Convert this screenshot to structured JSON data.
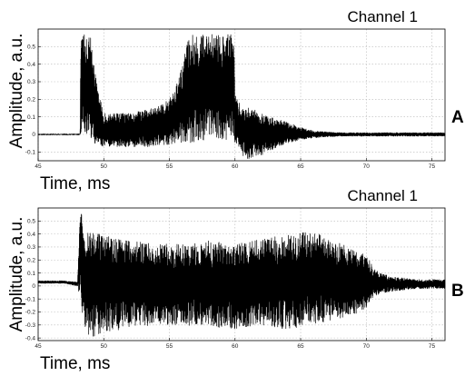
{
  "chart_data": [
    {
      "panel_label": "A",
      "type": "line",
      "title": "Channel 1",
      "xlabel": "Time, ms",
      "ylabel": "Amplitude, a.u.",
      "xlim": [
        45,
        76
      ],
      "ylim": [
        -0.15,
        0.6
      ],
      "xticks": [
        45,
        50,
        55,
        60,
        65,
        70,
        75
      ],
      "yticks": [
        -0.1,
        0,
        0.1,
        0.2,
        0.3,
        0.4,
        0.5
      ],
      "grid": true,
      "color": "#000000",
      "series": [
        {
          "kind": "envelope",
          "x": [
            45,
            47,
            48.2,
            48.25,
            48.5,
            48.55,
            49,
            49.5,
            50,
            51,
            52,
            53,
            54,
            55,
            55.5,
            56,
            56.5,
            57,
            58,
            59,
            59.9,
            60,
            60.5,
            61,
            62,
            63,
            64,
            65,
            66,
            67,
            68,
            70,
            72,
            74,
            76
          ],
          "max": [
            0.0,
            0.0,
            0.0,
            0.57,
            0.57,
            0.57,
            0.55,
            0.28,
            0.12,
            0.12,
            0.12,
            0.14,
            0.16,
            0.2,
            0.28,
            0.4,
            0.57,
            0.57,
            0.57,
            0.57,
            0.57,
            0.25,
            0.14,
            0.16,
            0.12,
            0.09,
            0.07,
            0.04,
            0.02,
            0.015,
            0.01,
            0.01,
            0.01,
            0.01,
            0.01
          ],
          "min": [
            0.0,
            0.0,
            0.0,
            0.0,
            0.05,
            0.0,
            -0.05,
            -0.06,
            -0.07,
            -0.07,
            -0.07,
            -0.07,
            -0.07,
            -0.06,
            -0.05,
            -0.05,
            -0.05,
            -0.04,
            -0.03,
            -0.03,
            -0.03,
            -0.06,
            -0.12,
            -0.14,
            -0.12,
            -0.08,
            -0.05,
            -0.03,
            -0.02,
            -0.015,
            -0.01,
            -0.01,
            -0.01,
            -0.01,
            -0.01
          ]
        }
      ]
    },
    {
      "panel_label": "B",
      "type": "line",
      "title": "Channel 1",
      "xlabel": "Time, ms",
      "ylabel": "Amplitude, a.u.",
      "xlim": [
        45,
        76
      ],
      "ylim": [
        -0.42,
        0.6
      ],
      "xticks": [
        45,
        50,
        55,
        60,
        65,
        70,
        75
      ],
      "yticks": [
        -0.4,
        -0.3,
        -0.2,
        -0.1,
        0,
        0.1,
        0.2,
        0.3,
        0.4,
        0.5
      ],
      "grid": true,
      "color": "#000000",
      "series": [
        {
          "kind": "envelope",
          "x": [
            45,
            47,
            48,
            48.2,
            48.4,
            48.6,
            49,
            50,
            52,
            54,
            56,
            58,
            60,
            62,
            64,
            66,
            67,
            68,
            69,
            70,
            70.5,
            71,
            72,
            73,
            74,
            76
          ],
          "max": [
            0.04,
            0.04,
            0.03,
            0.56,
            0.58,
            0.45,
            0.42,
            0.4,
            0.36,
            0.32,
            0.33,
            0.35,
            0.32,
            0.36,
            0.4,
            0.42,
            0.38,
            0.33,
            0.28,
            0.24,
            0.15,
            0.1,
            0.07,
            0.06,
            0.05,
            0.05
          ],
          "min": [
            0.02,
            0.02,
            0.0,
            -0.1,
            -0.28,
            -0.35,
            -0.4,
            -0.36,
            -0.32,
            -0.3,
            -0.3,
            -0.32,
            -0.33,
            -0.32,
            -0.33,
            -0.3,
            -0.28,
            -0.25,
            -0.22,
            -0.18,
            -0.1,
            -0.06,
            -0.04,
            -0.03,
            -0.02,
            -0.02
          ]
        }
      ]
    }
  ]
}
